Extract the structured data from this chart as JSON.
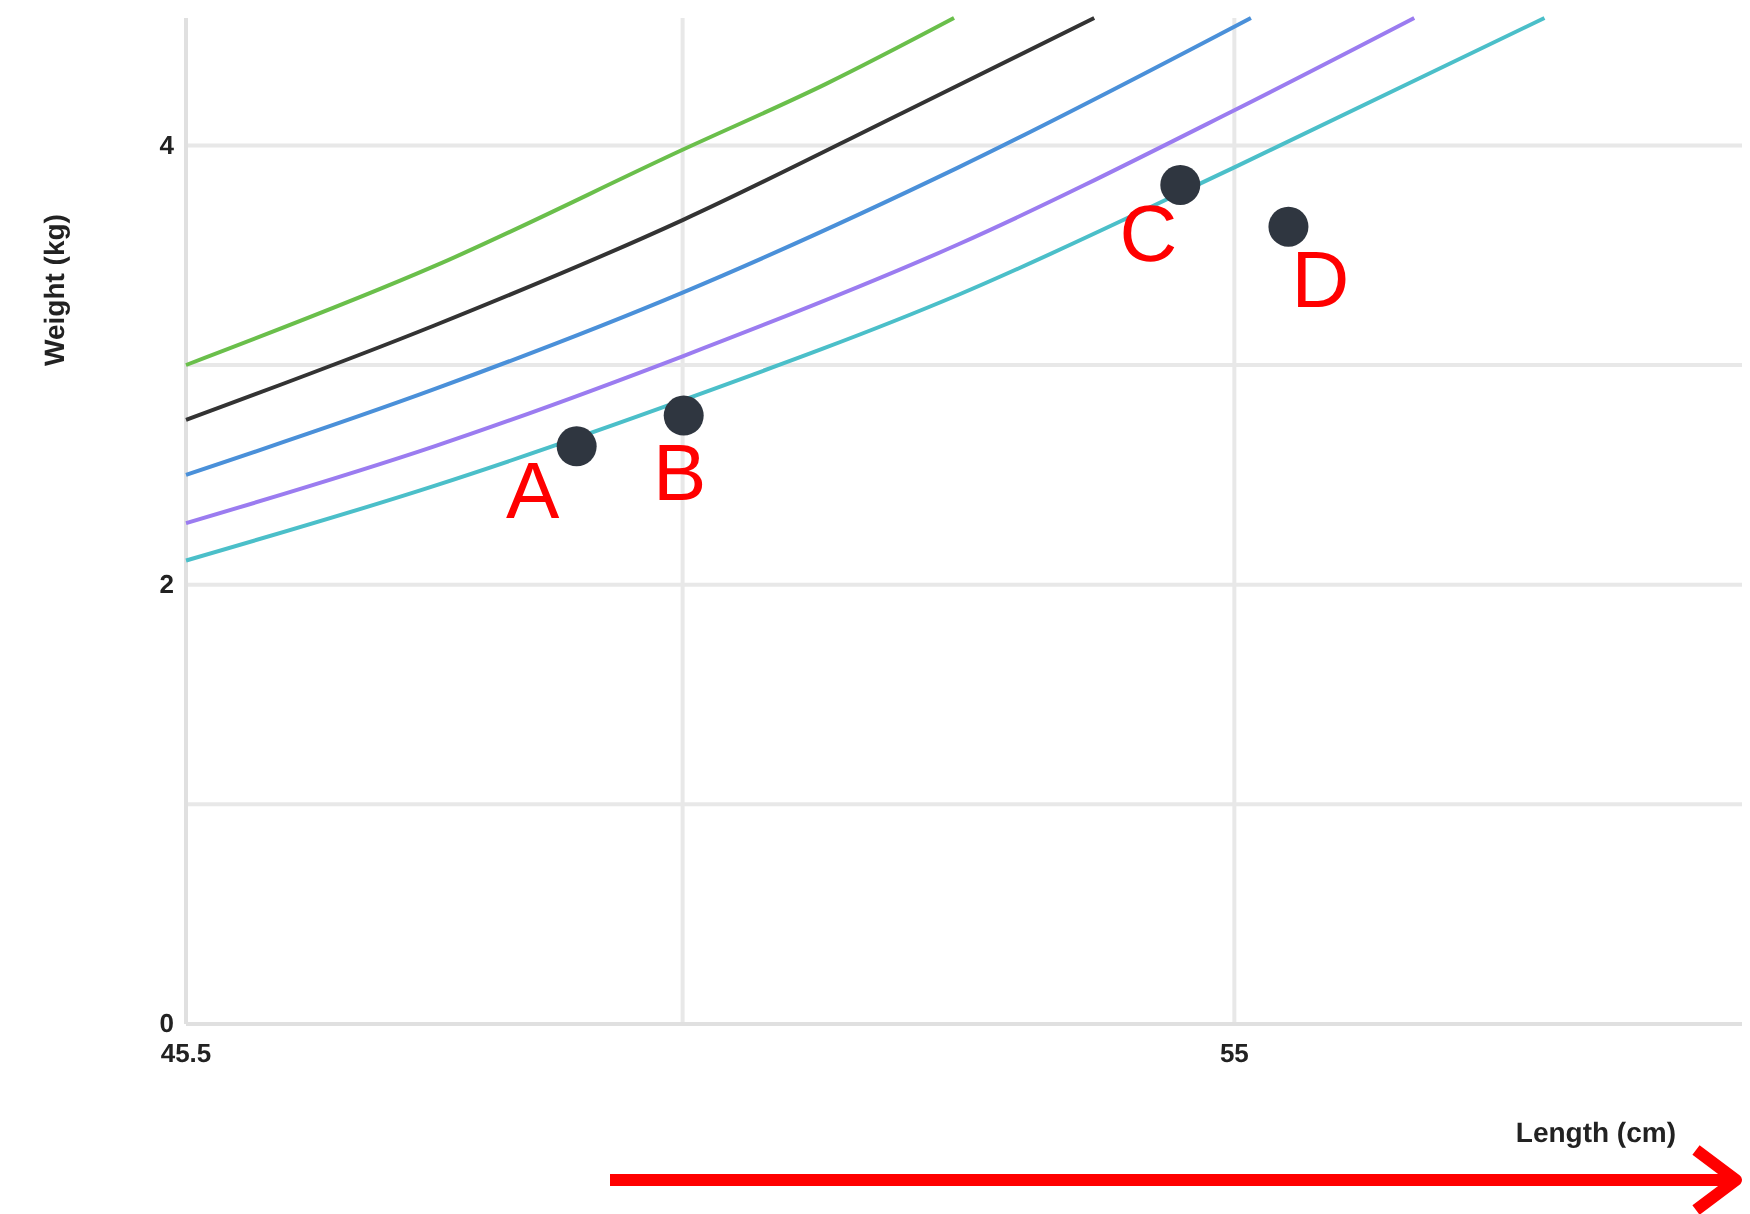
{
  "chart_data": {
    "type": "line",
    "xlabel": "Length (cm)",
    "ylabel": "Weight (kg)",
    "xlim": [
      45.5,
      59.6
    ],
    "ylim": [
      0,
      4.58
    ],
    "xticks": [
      45.5,
      {
        "value": 50,
        "label": null
      },
      55
    ],
    "yticks": [
      0,
      {
        "value": 1,
        "label": null
      },
      2,
      {
        "value": 3,
        "label": null
      },
      4
    ],
    "grid": true,
    "line_style": "solid",
    "series": [
      {
        "color": "#6abf4b",
        "x": [
          45.5,
          47.75,
          50,
          51.3,
          52.46
        ],
        "values": [
          3.0,
          3.45,
          3.98,
          4.28,
          4.58
        ]
      },
      {
        "color": "#333333",
        "x": [
          45.5,
          47.75,
          50,
          52,
          53.73
        ],
        "values": [
          2.75,
          3.18,
          3.66,
          4.15,
          4.58
        ]
      },
      {
        "color": "#4a90d9",
        "x": [
          45.5,
          47.75,
          50,
          52.5,
          55.15
        ],
        "values": [
          2.5,
          2.89,
          3.33,
          3.9,
          4.58
        ]
      },
      {
        "color": "#9b7cf0",
        "x": [
          45.5,
          47.75,
          50,
          52.5,
          55,
          56.63
        ],
        "values": [
          2.28,
          2.63,
          3.04,
          3.55,
          4.16,
          4.58
        ]
      },
      {
        "color": "#4bbfc9",
        "x": [
          45.5,
          47.75,
          50,
          52.5,
          55,
          57.81
        ],
        "values": [
          2.11,
          2.45,
          2.84,
          3.32,
          3.9,
          4.58
        ]
      },
      {
        "type": "scatter",
        "color": "#2f3640",
        "marker": "circle",
        "x": [
          49.04,
          50.01,
          54.51,
          55.49
        ],
        "values": [
          2.63,
          2.77,
          3.82,
          3.63
        ]
      }
    ],
    "annotations": [
      {
        "text": "A",
        "x": 49.04,
        "y": 2.63
      },
      {
        "text": "B",
        "x": 50.01,
        "y": 2.77
      },
      {
        "text": "C",
        "x": 54.51,
        "y": 3.82
      },
      {
        "text": "D",
        "x": 55.49,
        "y": 3.63
      }
    ]
  }
}
